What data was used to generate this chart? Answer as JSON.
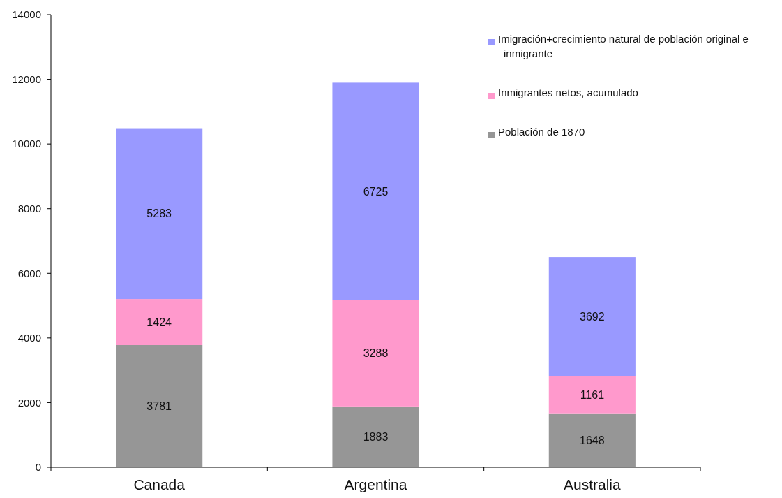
{
  "chart_data": {
    "type": "bar",
    "stacked": true,
    "categories": [
      "Canada",
      "Argentina",
      "Australia"
    ],
    "series": [
      {
        "name": "Población de 1870",
        "color": "#969696",
        "values": [
          3781,
          1883,
          1648
        ]
      },
      {
        "name": "Inmigrantes netos, acumulado",
        "color": "#ff99cc",
        "values": [
          1424,
          3288,
          1161
        ]
      },
      {
        "name": "Imigración+crecimiento natural de población original e inmigrante",
        "color": "#9999ff",
        "values": [
          5283,
          6725,
          3692
        ]
      }
    ],
    "ylim": [
      0,
      14000
    ],
    "yticks": [
      0,
      2000,
      4000,
      6000,
      8000,
      10000,
      12000,
      14000
    ],
    "grid": false,
    "legend": "top right",
    "data_labels": true
  }
}
